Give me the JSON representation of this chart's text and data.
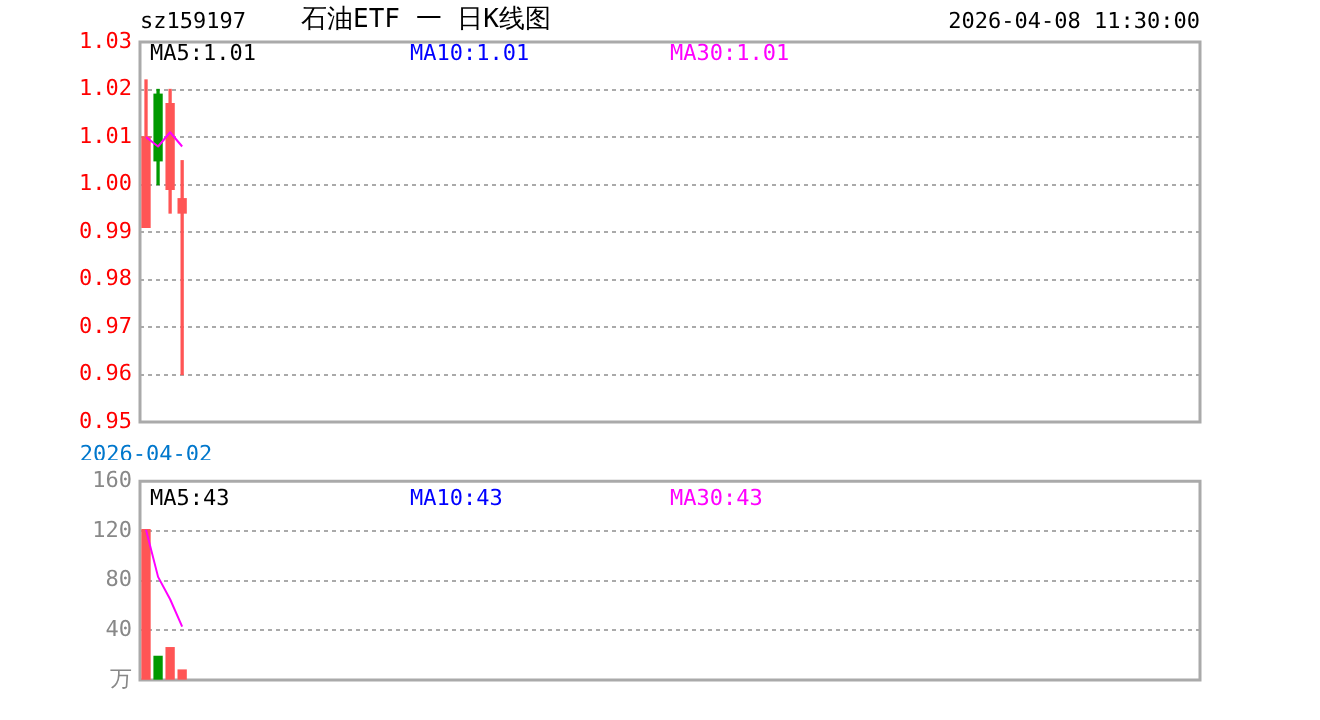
{
  "chart_data": [
    {
      "type": "candlestick",
      "title": "石油ETF 一 日K线图",
      "annotations": [
        "sz159197",
        "2026-04-08 11:30:00",
        "MA5:1.01",
        "MA10:1.01",
        "MA30:1.01"
      ],
      "categories": [
        "2026-04-02",
        null,
        null,
        null,
        null,
        null,
        null,
        null,
        null,
        null,
        null,
        null,
        null,
        null,
        null,
        null,
        null,
        null,
        null,
        null,
        null,
        null,
        null,
        null,
        null,
        null,
        null,
        null,
        null,
        null,
        null,
        null,
        null,
        null,
        null,
        null,
        null,
        null,
        null,
        null,
        null,
        null,
        null,
        null,
        null,
        null,
        null,
        null,
        null,
        null,
        null,
        null,
        null,
        null,
        null,
        null,
        null,
        null,
        null,
        null,
        null,
        null,
        null,
        null,
        null,
        null,
        null,
        null,
        null,
        null,
        null,
        null,
        null,
        null,
        null,
        null,
        null,
        null,
        null,
        null,
        null,
        null,
        null,
        null,
        null,
        null,
        null,
        null
      ],
      "ohlc": [
        [
          0.991,
          1.022,
          0.991,
          1.01
        ],
        [
          1.019,
          1.02,
          1.0,
          1.005
        ],
        [
          0.999,
          1.02,
          0.994,
          1.017
        ],
        [
          0.994,
          1.005,
          0.96,
          0.997
        ],
        null,
        null,
        null,
        null,
        null,
        null,
        null,
        null,
        null,
        null,
        null,
        null,
        null,
        null,
        null,
        null,
        null,
        null,
        null,
        null,
        null,
        null,
        null,
        null,
        null,
        null,
        null,
        null,
        null,
        null,
        null,
        null,
        null,
        null,
        null,
        null,
        null,
        null,
        null,
        null,
        null,
        null,
        null,
        null,
        null,
        null,
        null,
        null,
        null,
        null,
        null,
        null,
        null,
        null,
        null,
        null,
        null,
        null,
        null,
        null,
        null,
        null,
        null,
        null,
        null,
        null,
        null,
        null,
        null,
        null,
        null,
        null,
        null,
        null,
        null,
        null,
        null,
        null,
        null,
        null,
        null,
        null,
        null,
        null
      ],
      "series": [
        {
          "type": "line",
          "color": "#ff00ff",
          "values": [
            1.01,
            1.008,
            1.011,
            1.008,
            null,
            null,
            null,
            null,
            null,
            null,
            null,
            null,
            null,
            null,
            null,
            null,
            null,
            null,
            null,
            null,
            null,
            null,
            null,
            null,
            null,
            null,
            null,
            null,
            null,
            null,
            null,
            null,
            null,
            null,
            null,
            null,
            null,
            null,
            null,
            null,
            null,
            null,
            null,
            null,
            null,
            null,
            null,
            null,
            null,
            null,
            null,
            null,
            null,
            null,
            null,
            null,
            null,
            null,
            null,
            null,
            null,
            null,
            null,
            null,
            null,
            null,
            null,
            null,
            null,
            null,
            null,
            null,
            null,
            null,
            null,
            null,
            null,
            null,
            null,
            null,
            null,
            null,
            null,
            null,
            null,
            null,
            null,
            null
          ]
        }
      ],
      "ylim": [
        0.95,
        1.03
      ],
      "yticks": [
        0.95,
        0.96,
        0.97,
        0.98,
        0.99,
        {
          "value": 1,
          "label": "1.00"
        },
        1.01,
        1.02,
        1.03
      ],
      "grid": "y",
      "legend": false
    },
    {
      "type": "bar",
      "annotations": [
        "MA5:43",
        "MA10:43",
        "MA30:43"
      ],
      "categories": [
        null,
        null,
        null,
        null,
        null,
        null,
        null,
        null,
        null,
        null,
        null,
        null,
        null,
        null,
        null,
        null,
        null,
        null,
        null,
        null,
        null,
        null,
        null,
        null,
        null,
        null,
        null,
        null,
        null,
        null,
        null,
        null,
        null,
        null,
        null,
        null,
        null,
        null,
        null,
        null,
        null,
        null,
        null,
        null,
        null,
        null,
        null,
        null,
        null,
        null,
        null,
        null,
        null,
        null,
        null,
        null,
        null,
        null,
        null,
        null,
        null,
        null,
        null,
        null,
        null,
        null,
        null,
        null,
        null,
        null,
        null,
        null,
        null,
        null,
        null,
        null,
        null,
        null,
        null,
        null,
        null,
        null,
        null,
        null,
        null,
        null,
        null,
        null
      ],
      "series": [
        {
          "type": "bar",
          "color": "#ff5555",
          "colors": [
            "#ff5555",
            "#009900",
            "#ff5555",
            "#ff5555",
            null,
            null,
            null,
            null,
            null,
            null,
            null,
            null,
            null,
            null,
            null,
            null,
            null,
            null,
            null,
            null,
            null,
            null,
            null,
            null,
            null,
            null,
            null,
            null,
            null,
            null,
            null,
            null,
            null,
            null,
            null,
            null,
            null,
            null,
            null,
            null,
            null,
            null,
            null,
            null,
            null,
            null,
            null,
            null,
            null,
            null,
            null,
            null,
            null,
            null,
            null,
            null,
            null,
            null,
            null,
            null,
            null,
            null,
            null,
            null,
            null,
            null,
            null,
            null,
            null,
            null,
            null,
            null,
            null,
            null,
            null,
            null,
            null,
            null,
            null,
            null,
            null,
            null,
            null,
            null,
            null,
            null,
            null,
            null
          ],
          "values": [
            121,
            19,
            26,
            8,
            null,
            null,
            null,
            null,
            null,
            null,
            null,
            null,
            null,
            null,
            null,
            null,
            null,
            null,
            null,
            null,
            null,
            null,
            null,
            null,
            null,
            null,
            null,
            null,
            null,
            null,
            null,
            null,
            null,
            null,
            null,
            null,
            null,
            null,
            null,
            null,
            null,
            null,
            null,
            null,
            null,
            null,
            null,
            null,
            null,
            null,
            null,
            null,
            null,
            null,
            null,
            null,
            null,
            null,
            null,
            null,
            null,
            null,
            null,
            null,
            null,
            null,
            null,
            null,
            null,
            null,
            null,
            null,
            null,
            null,
            null,
            null,
            null,
            null,
            null,
            null,
            null,
            null,
            null,
            null,
            null,
            null,
            null,
            null
          ]
        },
        {
          "type": "line",
          "color": "#ff00ff",
          "values": [
            121,
            83,
            65,
            43,
            null,
            null,
            null,
            null,
            null,
            null,
            null,
            null,
            null,
            null,
            null,
            null,
            null,
            null,
            null,
            null,
            null,
            null,
            null,
            null,
            null,
            null,
            null,
            null,
            null,
            null,
            null,
            null,
            null,
            null,
            null,
            null,
            null,
            null,
            null,
            null,
            null,
            null,
            null,
            null,
            null,
            null,
            null,
            null,
            null,
            null,
            null,
            null,
            null,
            null,
            null,
            null,
            null,
            null,
            null,
            null,
            null,
            null,
            null,
            null,
            null,
            null,
            null,
            null,
            null,
            null,
            null,
            null,
            null,
            null,
            null,
            null,
            null,
            null,
            null,
            null,
            null,
            null,
            null,
            null,
            null,
            null,
            null,
            null
          ]
        }
      ],
      "ylim": [
        0,
        160
      ],
      "yticks": [
        {
          "value": 0,
          "label": "万"
        },
        40,
        80,
        120,
        160
      ],
      "grid": "y",
      "tick_labels": "y",
      "legend": false
    }
  ]
}
